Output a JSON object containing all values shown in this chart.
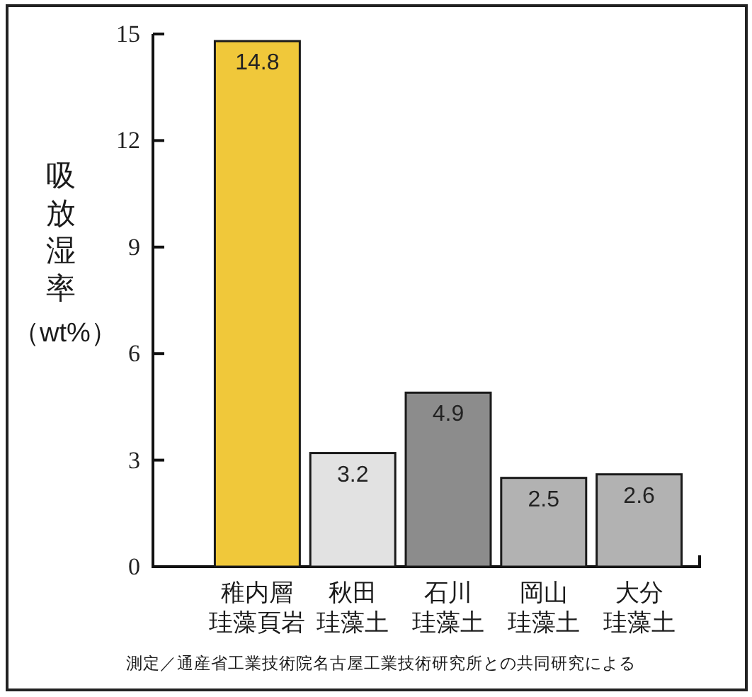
{
  "chart_data": {
    "type": "bar",
    "ylabel": "吸放湿率（wt%）",
    "categories": [
      "稚内層珪藻頁岩",
      "秋田珪藻土",
      "石川珪藻土",
      "岡山珪藻土",
      "大分珪藻土"
    ],
    "values": [
      14.8,
      3.2,
      4.9,
      2.5,
      2.6
    ],
    "colors": [
      "#f0c83a",
      "#e2e2e2",
      "#8c8c8c",
      "#b2b2b2",
      "#b2b2b2"
    ],
    "ylim": [
      0,
      15
    ],
    "yticks": [
      0,
      3,
      6,
      9,
      12,
      15
    ],
    "data_labels": true,
    "annotations": [
      "測定／通産省工業技術院名古屋工業技術研究所との共同研究による"
    ]
  }
}
